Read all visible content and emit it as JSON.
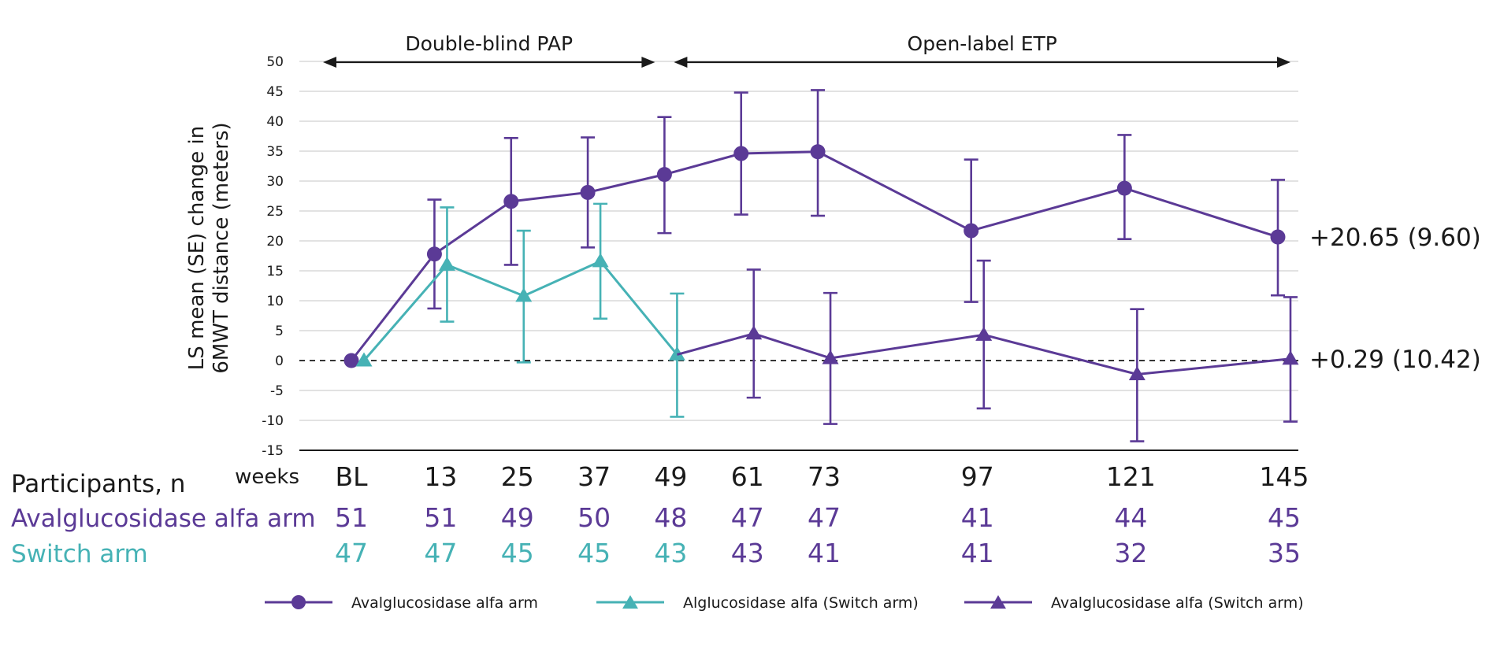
{
  "chart_data": {
    "type": "line",
    "ylabel": "LS mean (SE) change in 6MWT distance (meters)",
    "ylabel_lines": [
      "LS mean (SE) change in",
      "6MWT distance (meters)"
    ],
    "xlabel": "weeks",
    "ylim": [
      -15,
      50
    ],
    "yticks": [
      50,
      45,
      40,
      35,
      30,
      25,
      20,
      15,
      10,
      5,
      0,
      -5,
      -10,
      -15
    ],
    "x_labels": [
      "BL",
      "13",
      "25",
      "37",
      "49",
      "61",
      "73",
      "97",
      "121",
      "145"
    ],
    "reference_line_y": 0,
    "grid": true,
    "periods": [
      {
        "label": "Double-blind PAP",
        "from": 0,
        "to": 49
      },
      {
        "label": "Open-label ETP",
        "from": 49,
        "to": 145
      }
    ],
    "series": [
      {
        "name": "Avalglucosidase alfa arm",
        "marker": "circle",
        "color": "#5b3a96",
        "x": [
          0,
          13,
          25,
          37,
          49,
          61,
          73,
          97,
          121,
          145
        ],
        "y": [
          0,
          17.8,
          26.6,
          28.1,
          31.1,
          34.6,
          34.9,
          21.7,
          28.8,
          20.65
        ],
        "se_low": [
          0,
          8.7,
          16.0,
          18.9,
          21.3,
          24.4,
          24.2,
          9.8,
          20.3,
          10.9
        ],
        "se_high": [
          0,
          26.9,
          37.2,
          37.3,
          40.7,
          44.8,
          45.2,
          33.6,
          37.7,
          30.2
        ]
      },
      {
        "name": "Alglucosidase alfa (Switch arm)",
        "marker": "triangle",
        "color": "#46b2b5",
        "x": [
          0,
          13,
          25,
          37,
          49
        ],
        "y": [
          0,
          16.0,
          10.8,
          16.6,
          1.0
        ],
        "se_low": [
          0,
          6.5,
          -0.3,
          7.0,
          -9.4
        ],
        "se_high": [
          0,
          25.6,
          21.7,
          26.2,
          11.2
        ]
      },
      {
        "name": "Avalglucosidase alfa (Switch arm)",
        "marker": "triangle",
        "color": "#5b3a96",
        "x": [
          49,
          61,
          73,
          97,
          121,
          145
        ],
        "y": [
          1.0,
          4.5,
          0.4,
          4.3,
          -2.3,
          0.29
        ],
        "se_low": [
          1.0,
          -6.2,
          -10.6,
          -8.0,
          -13.5,
          -10.2
        ],
        "se_high": [
          1.0,
          15.2,
          11.3,
          16.7,
          8.6,
          10.6
        ]
      }
    ],
    "end_labels": [
      {
        "series": 0,
        "text": "+20.65 (9.60)"
      },
      {
        "series": 2,
        "text": "+0.29 (10.42)"
      }
    ],
    "participants": {
      "title": "Participants, n",
      "rows": [
        {
          "label": "Avalglucosidase alfa arm",
          "color": "#5b3a96",
          "values": [
            "51",
            "51",
            "49",
            "50",
            "48",
            "47",
            "47",
            "41",
            "44",
            "45"
          ],
          "colors": [
            "#5b3a96",
            "#5b3a96",
            "#5b3a96",
            "#5b3a96",
            "#5b3a96",
            "#5b3a96",
            "#5b3a96",
            "#5b3a96",
            "#5b3a96",
            "#5b3a96"
          ]
        },
        {
          "label": "Switch arm",
          "color": "#46b2b5",
          "values": [
            "47",
            "47",
            "45",
            "45",
            "43",
            "43",
            "41",
            "41",
            "32",
            "35"
          ],
          "colors": [
            "#46b2b5",
            "#46b2b5",
            "#46b2b5",
            "#46b2b5",
            "#46b2b5",
            "#5b3a96",
            "#5b3a96",
            "#5b3a96",
            "#5b3a96",
            "#5b3a96"
          ]
        }
      ]
    },
    "legend": [
      {
        "label": "Avalglucosidase alfa arm",
        "marker": "circle",
        "color": "#5b3a96"
      },
      {
        "label": "Alglucosidase alfa (Switch arm)",
        "marker": "triangle",
        "color": "#46b2b5"
      },
      {
        "label": "Avalglucosidase alfa (Switch arm)",
        "marker": "triangle",
        "color": "#5b3a96"
      }
    ]
  }
}
